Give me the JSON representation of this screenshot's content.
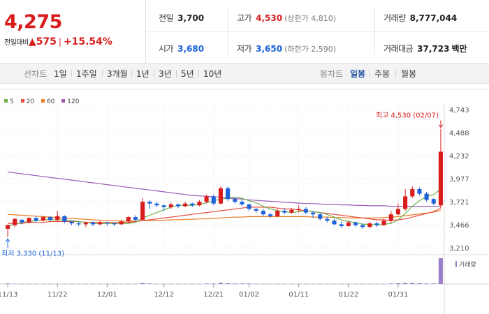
{
  "quote": {
    "price": "4,275",
    "change_label": "전일대비",
    "change_value": "575",
    "change_pct": "+15.54%"
  },
  "stats": {
    "prev_close_label": "전일",
    "prev_close": "3,700",
    "high_label": "고가",
    "high": "4,530",
    "upper_limit": "(상한가 4,810)",
    "volume_label": "거래량",
    "volume": "8,777,044",
    "open_label": "시가",
    "open": "3,680",
    "low_label": "저가",
    "low": "3,650",
    "lower_limit": "(하한가 2,590)",
    "amount_label": "거래대금",
    "amount": "37,723",
    "amount_unit": "백만"
  },
  "tabs": {
    "line_label": "선차트",
    "line_periods": [
      "1일",
      "1주일",
      "3개월",
      "1년",
      "3년",
      "5년",
      "10년"
    ],
    "candle_label": "봉차트",
    "candle_periods": [
      "일봉",
      "주봉",
      "월봉"
    ],
    "candle_active": "일봉"
  },
  "colors": {
    "up": "#d91d1d",
    "down": "#1d63d9",
    "ma5": "#6ab04c",
    "ma20": "#e74c3c",
    "ma60": "#e67e22",
    "ma120": "#9b59b6",
    "volume": "#9b7fc8"
  },
  "chart_data": {
    "type": "candlestick",
    "legend": [
      {
        "name": "5",
        "color": "#6ab04c"
      },
      {
        "name": "20",
        "color": "#e74c3c"
      },
      {
        "name": "60",
        "color": "#e67e22"
      },
      {
        "name": "120",
        "color": "#9b59b6"
      }
    ],
    "y_ticks": [
      "4,743",
      "4,488",
      "4,232",
      "3,977",
      "3,721",
      "3,466",
      "3,210"
    ],
    "ylim": [
      3210,
      4743
    ],
    "x_ticks": [
      "11/13",
      "11/22",
      "12/01",
      "12/12",
      "12/21",
      "01/02",
      "01/11",
      "01/22",
      "01/31"
    ],
    "x_tick_index": [
      0,
      7,
      14,
      22,
      29,
      34,
      41,
      48,
      55
    ],
    "max_label": "최고 4,530 (02/07)",
    "min_label": "최저 3,330 (11/13)",
    "volume_label": "거래량",
    "candles": [
      [
        3420,
        3460,
        3330,
        3470
      ],
      [
        3460,
        3530,
        3440,
        3540
      ],
      [
        3520,
        3490,
        3470,
        3530
      ],
      [
        3490,
        3540,
        3480,
        3550
      ],
      [
        3540,
        3510,
        3490,
        3560
      ],
      [
        3510,
        3550,
        3500,
        3560
      ],
      [
        3550,
        3520,
        3500,
        3560
      ],
      [
        3520,
        3560,
        3500,
        3620
      ],
      [
        3560,
        3500,
        3480,
        3570
      ],
      [
        3500,
        3480,
        3460,
        3510
      ],
      [
        3480,
        3470,
        3450,
        3500
      ],
      [
        3470,
        3490,
        3440,
        3500
      ],
      [
        3490,
        3470,
        3450,
        3500
      ],
      [
        3470,
        3490,
        3460,
        3510
      ],
      [
        3490,
        3480,
        3450,
        3500
      ],
      [
        3480,
        3470,
        3450,
        3490
      ],
      [
        3470,
        3500,
        3460,
        3520
      ],
      [
        3500,
        3550,
        3480,
        3560
      ],
      [
        3550,
        3520,
        3500,
        3570
      ],
      [
        3520,
        3720,
        3510,
        3760
      ],
      [
        3720,
        3700,
        3640,
        3740
      ],
      [
        3700,
        3680,
        3660,
        3720
      ],
      [
        3680,
        3660,
        3620,
        3690
      ],
      [
        3660,
        3690,
        3640,
        3710
      ],
      [
        3690,
        3670,
        3650,
        3700
      ],
      [
        3670,
        3700,
        3660,
        3720
      ],
      [
        3700,
        3680,
        3660,
        3710
      ],
      [
        3680,
        3720,
        3670,
        3740
      ],
      [
        3720,
        3780,
        3700,
        3800
      ],
      [
        3780,
        3700,
        3680,
        3800
      ],
      [
        3700,
        3870,
        3690,
        3890
      ],
      [
        3870,
        3750,
        3730,
        3890
      ],
      [
        3750,
        3720,
        3700,
        3770
      ],
      [
        3720,
        3690,
        3670,
        3740
      ],
      [
        3690,
        3640,
        3620,
        3700
      ],
      [
        3640,
        3620,
        3600,
        3650
      ],
      [
        3620,
        3580,
        3560,
        3640
      ],
      [
        3580,
        3560,
        3540,
        3600
      ],
      [
        3560,
        3620,
        3550,
        3640
      ],
      [
        3620,
        3600,
        3580,
        3650
      ],
      [
        3600,
        3630,
        3590,
        3650
      ],
      [
        3630,
        3640,
        3600,
        3680
      ],
      [
        3640,
        3600,
        3580,
        3660
      ],
      [
        3600,
        3580,
        3540,
        3620
      ],
      [
        3580,
        3530,
        3510,
        3600
      ],
      [
        3530,
        3510,
        3490,
        3550
      ],
      [
        3510,
        3470,
        3460,
        3530
      ],
      [
        3470,
        3450,
        3430,
        3500
      ],
      [
        3450,
        3490,
        3440,
        3510
      ],
      [
        3490,
        3460,
        3440,
        3500
      ],
      [
        3460,
        3440,
        3420,
        3480
      ],
      [
        3440,
        3480,
        3430,
        3500
      ],
      [
        3480,
        3460,
        3440,
        3500
      ],
      [
        3460,
        3510,
        3450,
        3530
      ],
      [
        3510,
        3580,
        3480,
        3620
      ],
      [
        3580,
        3640,
        3570,
        3700
      ],
      [
        3640,
        3780,
        3620,
        3860
      ],
      [
        3780,
        3860,
        3760,
        3890
      ],
      [
        3860,
        3810,
        3790,
        3880
      ],
      [
        3810,
        3740,
        3720,
        3830
      ],
      [
        3750,
        3700,
        3680,
        3760
      ],
      [
        3680,
        4275,
        3650,
        4530
      ]
    ],
    "ma5": [
      3450,
      3470,
      3490,
      3500,
      3510,
      3520,
      3520,
      3520,
      3520,
      3510,
      3500,
      3490,
      3480,
      3480,
      3480,
      3480,
      3480,
      3480,
      3490,
      3540,
      3570,
      3600,
      3630,
      3660,
      3680,
      3680,
      3680,
      3690,
      3710,
      3730,
      3750,
      3760,
      3770,
      3760,
      3730,
      3710,
      3670,
      3640,
      3620,
      3610,
      3600,
      3610,
      3620,
      3610,
      3600,
      3580,
      3550,
      3520,
      3500,
      3490,
      3470,
      3470,
      3460,
      3470,
      3480,
      3520,
      3590,
      3670,
      3730,
      3780,
      3800,
      3860
    ],
    "ma20": [
      3480,
      3480,
      3480,
      3490,
      3490,
      3490,
      3500,
      3500,
      3500,
      3500,
      3500,
      3490,
      3490,
      3490,
      3490,
      3490,
      3490,
      3490,
      3500,
      3510,
      3520,
      3530,
      3540,
      3550,
      3560,
      3570,
      3580,
      3590,
      3600,
      3610,
      3620,
      3630,
      3640,
      3650,
      3660,
      3660,
      3660,
      3660,
      3650,
      3640,
      3640,
      3630,
      3620,
      3610,
      3600,
      3590,
      3580,
      3570,
      3560,
      3550,
      3540,
      3530,
      3520,
      3520,
      3510,
      3520,
      3530,
      3550,
      3570,
      3590,
      3610,
      3650
    ],
    "ma60": [
      3580,
      3575,
      3570,
      3565,
      3560,
      3555,
      3550,
      3545,
      3540,
      3535,
      3530,
      3525,
      3520,
      3515,
      3510,
      3510,
      3505,
      3505,
      3505,
      3510,
      3510,
      3515,
      3515,
      3520,
      3520,
      3525,
      3525,
      3530,
      3530,
      3535,
      3540,
      3545,
      3550,
      3550,
      3555,
      3555,
      3555,
      3555,
      3555,
      3555,
      3555,
      3555,
      3555,
      3550,
      3550,
      3550,
      3545,
      3545,
      3540,
      3540,
      3540,
      3540,
      3540,
      3545,
      3550,
      3555,
      3565,
      3575,
      3585,
      3595,
      3605,
      3625
    ],
    "ma120": [
      4050,
      4040,
      4030,
      4020,
      4010,
      4000,
      3990,
      3980,
      3970,
      3960,
      3950,
      3940,
      3930,
      3920,
      3910,
      3900,
      3890,
      3880,
      3870,
      3860,
      3850,
      3840,
      3830,
      3820,
      3810,
      3800,
      3790,
      3785,
      3780,
      3775,
      3770,
      3760,
      3755,
      3750,
      3740,
      3735,
      3730,
      3725,
      3720,
      3715,
      3710,
      3705,
      3700,
      3700,
      3695,
      3690,
      3690,
      3685,
      3685,
      3680,
      3680,
      3675,
      3675,
      3675,
      3670,
      3670,
      3670,
      3670,
      3670,
      3670,
      3670,
      3670
    ],
    "volume": [
      0.02,
      0.01,
      0.01,
      0.01,
      0.01,
      0.01,
      0.01,
      0.01,
      0.01,
      0.01,
      0.01,
      0.01,
      0.01,
      0.01,
      0.01,
      0.01,
      0.01,
      0.01,
      0.01,
      0.04,
      0.02,
      0.01,
      0.01,
      0.01,
      0.01,
      0.01,
      0.01,
      0.01,
      0.02,
      0.02,
      0.05,
      0.03,
      0.02,
      0.02,
      0.02,
      0.01,
      0.01,
      0.01,
      0.01,
      0.01,
      0.01,
      0.01,
      0.01,
      0.01,
      0.01,
      0.01,
      0.01,
      0.01,
      0.01,
      0.01,
      0.01,
      0.01,
      0.01,
      0.01,
      0.02,
      0.03,
      0.04,
      0.04,
      0.03,
      0.02,
      0.02,
      1.0
    ]
  }
}
